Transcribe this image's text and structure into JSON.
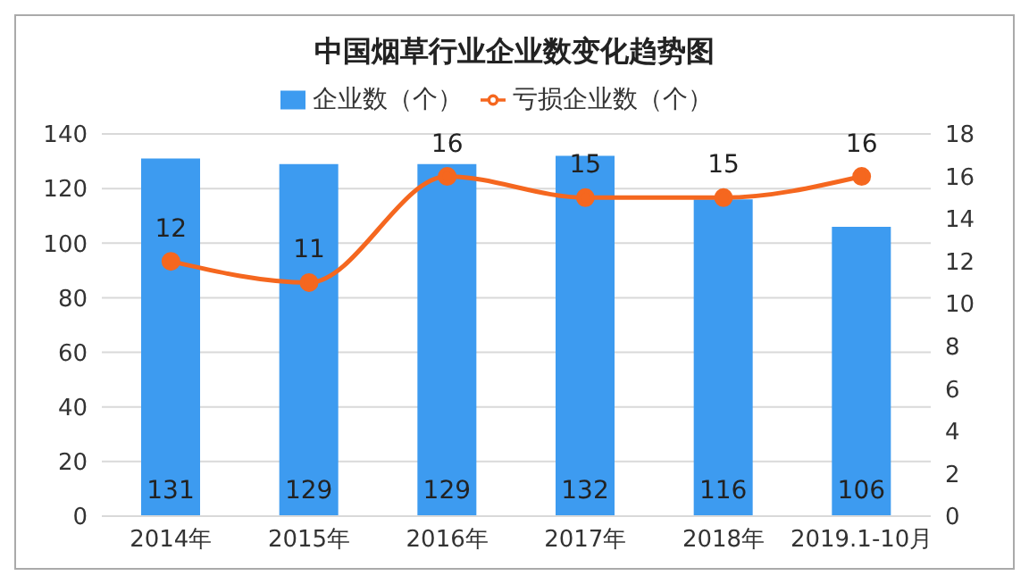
{
  "chart_data": {
    "type": "bar",
    "title": "中国烟草行业企业数变化趋势图",
    "categories": [
      "2014年",
      "2015年",
      "2016年",
      "2017年",
      "2018年",
      "2019.1-10月"
    ],
    "series": [
      {
        "name": "企业数（个）",
        "color": "#3d9bf0",
        "values": [
          131,
          129,
          129,
          132,
          116,
          106
        ]
      },
      {
        "name": "亏损企业数（个）",
        "type": "line",
        "axis": "y2",
        "color": "#f5671f",
        "marker": "circle",
        "values": [
          12,
          11,
          16,
          15,
          15,
          16
        ]
      }
    ],
    "ylim": [
      0,
      140
    ],
    "yticks": [
      0,
      20,
      40,
      60,
      80,
      100,
      120,
      140
    ],
    "y2lim": [
      0,
      18
    ],
    "y2ticks": [
      0,
      2,
      4,
      6,
      8,
      10,
      12,
      14,
      16,
      18
    ],
    "grid": "y",
    "legend": "top",
    "data_labels": true
  }
}
